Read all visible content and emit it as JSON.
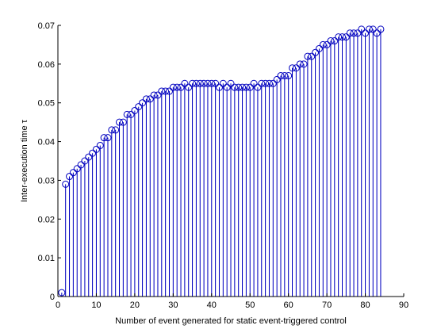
{
  "chart_data": {
    "type": "stem",
    "xlabel": "Number of event generated for static event-triggered control",
    "ylabel": "Inter-execution time τ",
    "xlim": [
      0,
      90
    ],
    "ylim": [
      0,
      0.07
    ],
    "xticks": [
      0,
      10,
      20,
      30,
      40,
      50,
      60,
      70,
      80,
      90
    ],
    "xtick_labels": [
      "0",
      "10",
      "20",
      "30",
      "40",
      "50",
      "60",
      "70",
      "80",
      "90"
    ],
    "yticks": [
      0,
      0.01,
      0.02,
      0.03,
      0.04,
      0.05,
      0.06,
      0.07
    ],
    "ytick_labels": [
      "0",
      "0.01",
      "0.02",
      "0.03",
      "0.04",
      "0.05",
      "0.06",
      "0.07"
    ],
    "grid": false,
    "marker": "circle",
    "color": "#0000bf",
    "x": [
      1,
      2,
      3,
      4,
      5,
      6,
      7,
      8,
      9,
      10,
      11,
      12,
      13,
      14,
      15,
      16,
      17,
      18,
      19,
      20,
      21,
      22,
      23,
      24,
      25,
      26,
      27,
      28,
      29,
      30,
      31,
      32,
      33,
      34,
      35,
      36,
      37,
      38,
      39,
      40,
      41,
      42,
      43,
      44,
      45,
      46,
      47,
      48,
      49,
      50,
      51,
      52,
      53,
      54,
      55,
      56,
      57,
      58,
      59,
      60,
      61,
      62,
      63,
      64,
      65,
      66,
      67,
      68,
      69,
      70,
      71,
      72,
      73,
      74,
      75,
      76,
      77,
      78,
      79,
      80,
      81,
      82,
      83,
      84
    ],
    "values": [
      0.001,
      0.029,
      0.031,
      0.032,
      0.033,
      0.034,
      0.035,
      0.036,
      0.037,
      0.038,
      0.039,
      0.041,
      0.041,
      0.043,
      0.043,
      0.045,
      0.045,
      0.047,
      0.047,
      0.048,
      0.049,
      0.05,
      0.051,
      0.051,
      0.052,
      0.052,
      0.053,
      0.053,
      0.053,
      0.054,
      0.054,
      0.054,
      0.055,
      0.054,
      0.055,
      0.055,
      0.055,
      0.055,
      0.055,
      0.055,
      0.055,
      0.054,
      0.055,
      0.054,
      0.055,
      0.054,
      0.054,
      0.054,
      0.054,
      0.054,
      0.055,
      0.054,
      0.055,
      0.055,
      0.055,
      0.055,
      0.056,
      0.057,
      0.057,
      0.057,
      0.059,
      0.059,
      0.06,
      0.06,
      0.062,
      0.062,
      0.063,
      0.064,
      0.065,
      0.065,
      0.066,
      0.066,
      0.067,
      0.067,
      0.067,
      0.068,
      0.068,
      0.068,
      0.069,
      0.068,
      0.069,
      0.069,
      0.068,
      0.069
    ]
  }
}
